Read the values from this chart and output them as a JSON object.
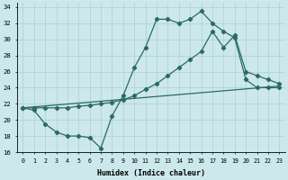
{
  "xlabel": "Humidex (Indice chaleur)",
  "bg_color": "#cce8ec",
  "grid_color": "#aacfd6",
  "line_color": "#2a6b5e",
  "xlim": [
    -0.5,
    23.5
  ],
  "ylim": [
    16,
    34.5
  ],
  "xticks": [
    0,
    1,
    2,
    3,
    4,
    5,
    6,
    7,
    8,
    9,
    10,
    11,
    12,
    13,
    14,
    15,
    16,
    17,
    18,
    19,
    20,
    21,
    22,
    23
  ],
  "yticks": [
    16,
    18,
    20,
    22,
    24,
    26,
    28,
    30,
    32,
    34
  ],
  "curve1_x": [
    0,
    1,
    2,
    3,
    4,
    5,
    6,
    7,
    8,
    9,
    10,
    11,
    12,
    13,
    14,
    15,
    16,
    17,
    18,
    19,
    20,
    21,
    22,
    23
  ],
  "curve1_y": [
    21.5,
    21.2,
    19.5,
    18.5,
    18.0,
    18.0,
    17.8,
    16.5,
    20.5,
    23.0,
    26.5,
    29.0,
    32.5,
    32.5,
    32.0,
    32.5,
    33.5,
    32.0,
    31.0,
    30.2,
    25.0,
    24.0,
    24.0,
    24.0
  ],
  "curve2_x": [
    0,
    1,
    2,
    3,
    4,
    5,
    6,
    7,
    8,
    9,
    10,
    11,
    12,
    13,
    14,
    15,
    16,
    17,
    18,
    19,
    20,
    21,
    22,
    23
  ],
  "curve2_y": [
    21.5,
    21.5,
    21.5,
    21.5,
    21.5,
    21.7,
    21.8,
    22.0,
    22.2,
    22.5,
    23.0,
    23.8,
    24.5,
    25.5,
    26.5,
    27.5,
    28.5,
    31.0,
    29.0,
    30.5,
    26.0,
    25.5,
    25.0,
    24.5
  ],
  "line3_x": [
    0,
    23
  ],
  "line3_y": [
    21.5,
    24.2
  ]
}
